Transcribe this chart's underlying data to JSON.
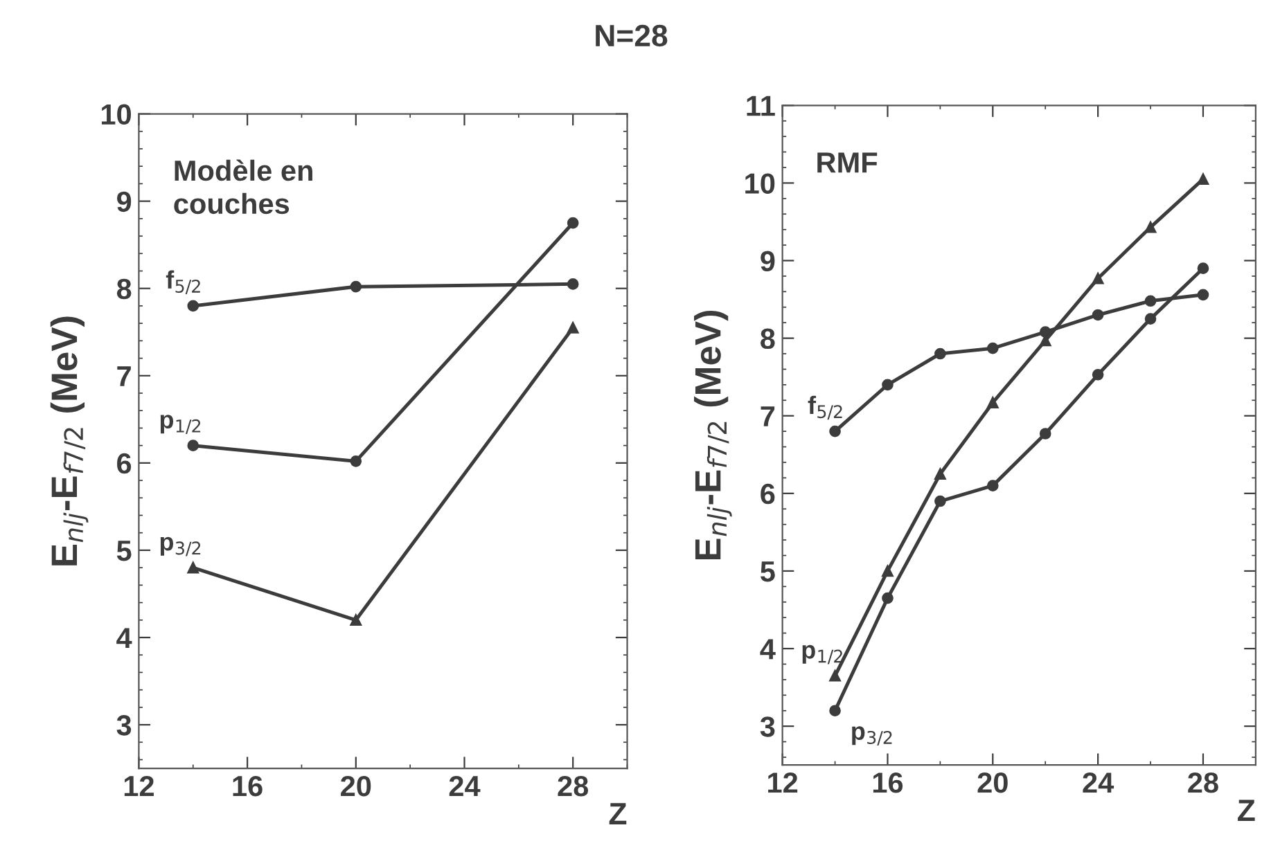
{
  "chart_data": [
    {
      "type": "line",
      "title": "N=28",
      "xlabel": "Z",
      "ylabel": "E$_{nlj}$-E$_{f7/2}$ (MeV)",
      "annotations": [
        "Modèle en\ncouches"
      ],
      "xlim": [
        12,
        30
      ],
      "xticks": [
        12,
        16,
        20,
        24,
        28
      ],
      "ylim": [
        2.5,
        10
      ],
      "yticks": [
        3,
        4,
        5,
        6,
        7,
        8,
        9,
        10
      ],
      "grid": false,
      "legend": false,
      "series": [
        {
          "name": "f$_{5/2}$",
          "color": "#3c3c3c",
          "marker": "circle",
          "x": [
            14,
            20,
            28
          ],
          "values": [
            7.8,
            8.02,
            8.05
          ]
        },
        {
          "name": "p$_{1/2}$",
          "color": "#3c3c3c",
          "marker": "circle",
          "x": [
            14,
            20,
            28
          ],
          "values": [
            6.2,
            6.02,
            8.75
          ]
        },
        {
          "name": "p$_{3/2}$",
          "color": "#3c3c3c",
          "marker": "triangle",
          "x": [
            14,
            20,
            28
          ],
          "values": [
            4.8,
            4.2,
            7.55
          ]
        }
      ]
    },
    {
      "type": "line",
      "xlabel": "Z",
      "ylabel": "E$_{nlj}$-E$_{f7/2}$ (MeV)",
      "annotations": [
        "RMF"
      ],
      "xlim": [
        12,
        30
      ],
      "xticks": [
        12,
        16,
        20,
        24,
        28
      ],
      "ylim": [
        2.5,
        11
      ],
      "yticks": [
        3,
        4,
        5,
        6,
        7,
        8,
        9,
        10,
        11
      ],
      "grid": false,
      "legend": false,
      "series": [
        {
          "name": "f$_{5/2}$",
          "color": "#3c3c3c",
          "marker": "circle",
          "x": [
            14,
            16,
            18,
            20,
            22,
            24,
            26,
            28
          ],
          "values": [
            6.8,
            7.4,
            7.8,
            7.87,
            8.08,
            8.3,
            8.48,
            8.56
          ]
        },
        {
          "name": "p$_{1/2}$",
          "color": "#3c3c3c",
          "marker": "triangle",
          "x": [
            14,
            16,
            18,
            20,
            22,
            24,
            26,
            28
          ],
          "values": [
            3.65,
            5.0,
            6.25,
            7.17,
            7.97,
            8.77,
            9.43,
            10.05
          ]
        },
        {
          "name": "p$_{3/2}$",
          "color": "#3c3c3c",
          "marker": "circle",
          "x": [
            14,
            16,
            18,
            20,
            22,
            24,
            26,
            28
          ],
          "values": [
            3.2,
            4.65,
            5.9,
            6.1,
            6.77,
            7.53,
            8.25,
            8.9
          ]
        }
      ]
    }
  ]
}
